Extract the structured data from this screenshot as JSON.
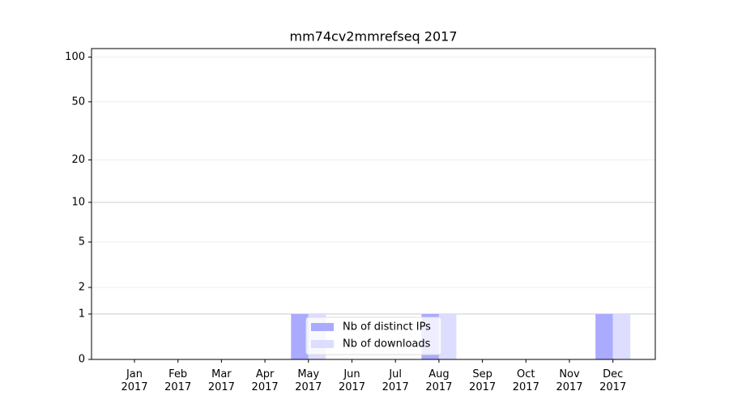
{
  "chart_data": {
    "type": "bar",
    "title": "mm74cv2mmrefseq 2017",
    "categories": [
      "Jan 2017",
      "Feb 2017",
      "Mar 2017",
      "Apr 2017",
      "May 2017",
      "Jun 2017",
      "Jul 2017",
      "Aug 2017",
      "Sep 2017",
      "Oct 2017",
      "Nov 2017",
      "Dec 2017"
    ],
    "series": [
      {
        "name": "Nb of distinct IPs",
        "color": "#aaaaff",
        "values": [
          0,
          0,
          0,
          0,
          1,
          0,
          0,
          1,
          0,
          0,
          0,
          1
        ]
      },
      {
        "name": "Nb of downloads",
        "color": "#ddddff",
        "values": [
          0,
          0,
          0,
          0,
          1,
          0,
          0,
          1,
          0,
          0,
          0,
          1
        ]
      }
    ],
    "yscale": "log1p",
    "ylim": [
      0,
      114
    ],
    "yticks": [
      0,
      1,
      2,
      5,
      10,
      20,
      50,
      100
    ],
    "grid": true,
    "legend": "lower center"
  }
}
